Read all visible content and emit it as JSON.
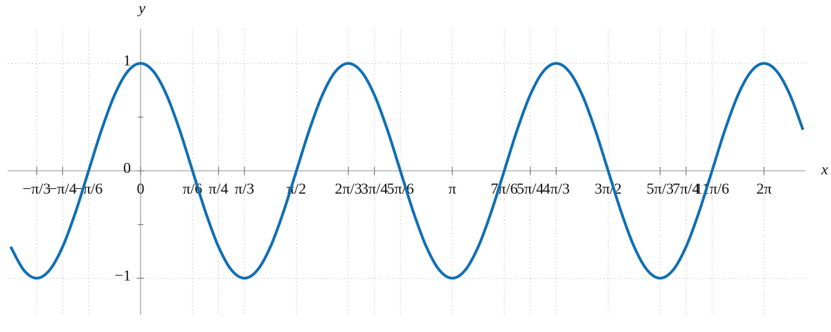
{
  "chart_data": {
    "type": "line",
    "x_label": "x",
    "y_label": "y",
    "x": [
      -1.309,
      -1.1781,
      -1.0472,
      -0.9163,
      -0.7854,
      -0.6545,
      -0.5236,
      -0.3927,
      -0.2618,
      -0.1309,
      0,
      0.1309,
      0.2618,
      0.3927,
      0.5236,
      0.6545,
      0.7854,
      0.9163,
      1.0472,
      1.1781,
      1.309,
      1.4399,
      1.5708,
      1.7017,
      1.8326,
      1.9635,
      2.0944,
      2.2253,
      2.3562,
      2.4871,
      2.618,
      2.7489,
      2.8798,
      3.0107,
      3.1416,
      3.2725,
      3.4034,
      3.5343,
      3.6652,
      3.7961,
      3.927,
      4.0579,
      4.1888,
      4.3197,
      4.4506,
      4.5815,
      4.7124,
      4.8433,
      4.9742,
      5.1051,
      5.236,
      5.3669,
      5.4978,
      5.6287,
      5.7596,
      5.8905,
      6.0214,
      6.1523,
      6.2832,
      6.4141,
      6.545,
      6.6759
    ],
    "series": [
      {
        "color": "#0f6fb3",
        "values": [
          -0.7071,
          -0.9239,
          -1,
          -0.9239,
          -0.7071,
          -0.3827,
          0,
          0.3827,
          0.7071,
          0.9239,
          1,
          0.9239,
          0.7071,
          0.3827,
          0,
          -0.3827,
          -0.7071,
          -0.9239,
          -1,
          -0.9239,
          -0.7071,
          -0.3827,
          0,
          0.3827,
          0.7071,
          0.9239,
          1,
          0.9239,
          0.7071,
          0.3827,
          0,
          -0.3827,
          -0.7071,
          -0.9239,
          -1,
          -0.9239,
          -0.7071,
          -0.3827,
          0,
          0.3827,
          0.7071,
          0.9239,
          1,
          0.9239,
          0.7071,
          0.3827,
          0,
          -0.3827,
          -0.7071,
          -0.9239,
          -1,
          -0.9239,
          -0.7071,
          -0.3827,
          0,
          0.3827,
          0.7071,
          0.9239,
          1,
          0.9239,
          0.7071,
          0.3827
        ]
      }
    ],
    "xlim": [
      -1.34,
      6.7
    ],
    "ylim": [
      -1.34,
      1.32
    ],
    "xticks": [
      {
        "value": -1.0472,
        "label": "−π/3"
      },
      {
        "value": -0.7854,
        "label": "−π/4"
      },
      {
        "value": -0.5236,
        "label": "−π/6"
      },
      0,
      {
        "value": 0.5236,
        "label": "π/6"
      },
      {
        "value": 0.7854,
        "label": "π/4"
      },
      {
        "value": 1.0472,
        "label": "π/3"
      },
      {
        "value": 1.5708,
        "label": "π/2"
      },
      {
        "value": 2.0944,
        "label": "2π/3"
      },
      {
        "value": 2.3562,
        "label": "3π/4"
      },
      {
        "value": 2.618,
        "label": "5π/6"
      },
      {
        "value": 3.1416,
        "label": "π"
      },
      {
        "value": 3.6652,
        "label": "7π/6"
      },
      {
        "value": 3.927,
        "label": "5π/4"
      },
      {
        "value": 4.1888,
        "label": "4π/3"
      },
      {
        "value": 4.7124,
        "label": "3π/2"
      },
      {
        "value": 5.236,
        "label": "5π/3"
      },
      {
        "value": 5.4978,
        "label": "7π/4"
      },
      {
        "value": 5.7596,
        "label": "11π/6"
      },
      {
        "value": 6.2832,
        "label": "2π"
      }
    ],
    "yticks": [
      {
        "value": -1,
        "label": "−1"
      },
      0,
      1
    ],
    "yminorticks": [
      -0.5,
      0.5
    ],
    "grid": true
  }
}
